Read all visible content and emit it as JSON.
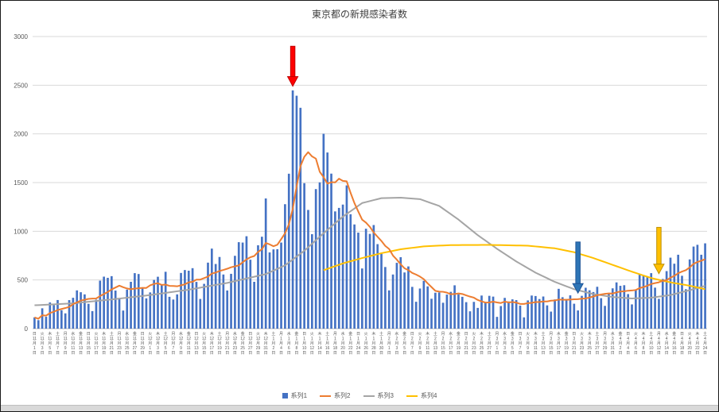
{
  "chart_data": {
    "type": "bar",
    "title": "東京都の新規感染者数",
    "grid": true,
    "legend_position": "bottom",
    "y_axis": {
      "min": 0,
      "max": 3000,
      "step": 500,
      "tick_labels": [
        "0",
        "500",
        "1000",
        "1500",
        "2000",
        "2500",
        "3000"
      ]
    },
    "x_axis": {
      "start_weekday": "日",
      "weekday_cycle": [
        "日",
        "月",
        "火",
        "水",
        "木",
        "金",
        "土"
      ],
      "months": [
        {
          "month": 11,
          "days": 30
        },
        {
          "month": 12,
          "days": 31
        },
        {
          "month": 1,
          "days": 31
        },
        {
          "month": 2,
          "days": 28
        },
        {
          "month": 3,
          "days": 31
        },
        {
          "month": 4,
          "days": 24
        }
      ],
      "label_every_n_days": 2,
      "month_suffix": "月",
      "day_suffix": "日"
    },
    "series": [
      {
        "name": "系列1",
        "type": "bar",
        "color": "#4472C4",
        "values": [
          116,
          87,
          209,
          122,
          269,
          242,
          294,
          189,
          157,
          293,
          317,
          393,
          374,
          352,
          255,
          180,
          298,
          493,
          534,
          522,
          539,
          391,
          314,
          186,
          401,
          481,
          570,
          561,
          418,
          311,
          372,
          500,
          533,
          449,
          584,
          327,
          299,
          352,
          572,
          602,
          595,
          621,
          480,
          305,
          460,
          678,
          822,
          664,
          736,
          556,
          392,
          563,
          748,
          888,
          884,
          949,
          708,
          481,
          856,
          944,
          1337,
          783,
          814,
          816,
          884,
          1278,
          1591,
          2447,
          2392,
          2268,
          1494,
          1219,
          970,
          1433,
          1502,
          2001,
          1809,
          1592,
          1204,
          1240,
          1274,
          1471,
          1175,
          1070,
          986,
          618,
          1026,
          973,
          1064,
          868,
          769,
          633,
          393,
          556,
          676,
          734,
          577,
          639,
          429,
          276,
          412,
          491,
          434,
          307,
          369,
          371,
          266,
          350,
          378,
          445,
          353,
          327,
          272,
          178,
          275,
          213,
          340,
          270,
          337,
          329,
          121,
          232,
          316,
          279,
          301,
          293,
          237,
          116,
          290,
          340,
          335,
          304,
          330,
          239,
          175,
          300,
          409,
          323,
          303,
          342,
          256,
          187,
          337,
          420,
          394,
          376,
          430,
          313,
          234,
          364,
          414,
          475,
          440,
          446,
          355,
          249,
          399,
          555,
          545,
          537,
          570,
          421,
          306,
          510,
          591,
          729,
          667,
          759,
          543,
          405,
          711,
          843,
          861,
          759,
          876
        ]
      },
      {
        "name": "系列2",
        "type": "line",
        "color": "#ED7D31",
        "derived": "7day_moving_average_of_series1"
      },
      {
        "name": "系列3",
        "type": "line",
        "color": "#A5A5A5",
        "points": [
          [
            0,
            240
          ],
          [
            10,
            260
          ],
          [
            20,
            300
          ],
          [
            29,
            340
          ],
          [
            40,
            400
          ],
          [
            50,
            470
          ],
          [
            60,
            560
          ],
          [
            65,
            650
          ],
          [
            70,
            800
          ],
          [
            75,
            980
          ],
          [
            80,
            1150
          ],
          [
            85,
            1290
          ],
          [
            90,
            1340
          ],
          [
            95,
            1345
          ],
          [
            100,
            1330
          ],
          [
            105,
            1260
          ],
          [
            110,
            1120
          ],
          [
            115,
            960
          ],
          [
            120,
            820
          ],
          [
            125,
            690
          ],
          [
            130,
            575
          ],
          [
            135,
            480
          ],
          [
            140,
            405
          ],
          [
            145,
            355
          ],
          [
            150,
            325
          ],
          [
            155,
            310
          ],
          [
            160,
            318
          ],
          [
            165,
            345
          ],
          [
            170,
            395
          ],
          [
            174,
            440
          ]
        ]
      },
      {
        "name": "系列4",
        "type": "line",
        "color": "#FFC000",
        "points": [
          [
            75,
            600
          ],
          [
            80,
            670
          ],
          [
            85,
            725
          ],
          [
            90,
            775
          ],
          [
            95,
            815
          ],
          [
            101,
            845
          ],
          [
            108,
            858
          ],
          [
            118,
            860
          ],
          [
            128,
            852
          ],
          [
            135,
            825
          ],
          [
            140,
            785
          ],
          [
            145,
            725
          ],
          [
            150,
            655
          ],
          [
            155,
            585
          ],
          [
            160,
            520
          ],
          [
            163,
            492
          ],
          [
            166,
            468
          ],
          [
            169,
            448
          ],
          [
            171,
            432
          ],
          [
            174,
            405
          ]
        ]
      }
    ],
    "annotations": [
      {
        "name": "red-arrow",
        "shape": "down-arrow",
        "index": 67,
        "tail_value": 2900,
        "tip_value": 2490,
        "fill": "#FF0000",
        "stroke": "#C00000"
      },
      {
        "name": "blue-arrow",
        "shape": "down-arrow",
        "index": 141,
        "tail_value": 890,
        "tip_value": 365,
        "fill": "#2E75B6",
        "stroke": "#1F5597"
      },
      {
        "name": "yellow-arrow",
        "shape": "down-arrow",
        "index": 162,
        "tail_value": 1040,
        "tip_value": 565,
        "fill": "#FFC000",
        "stroke": "#BF9000"
      }
    ]
  }
}
